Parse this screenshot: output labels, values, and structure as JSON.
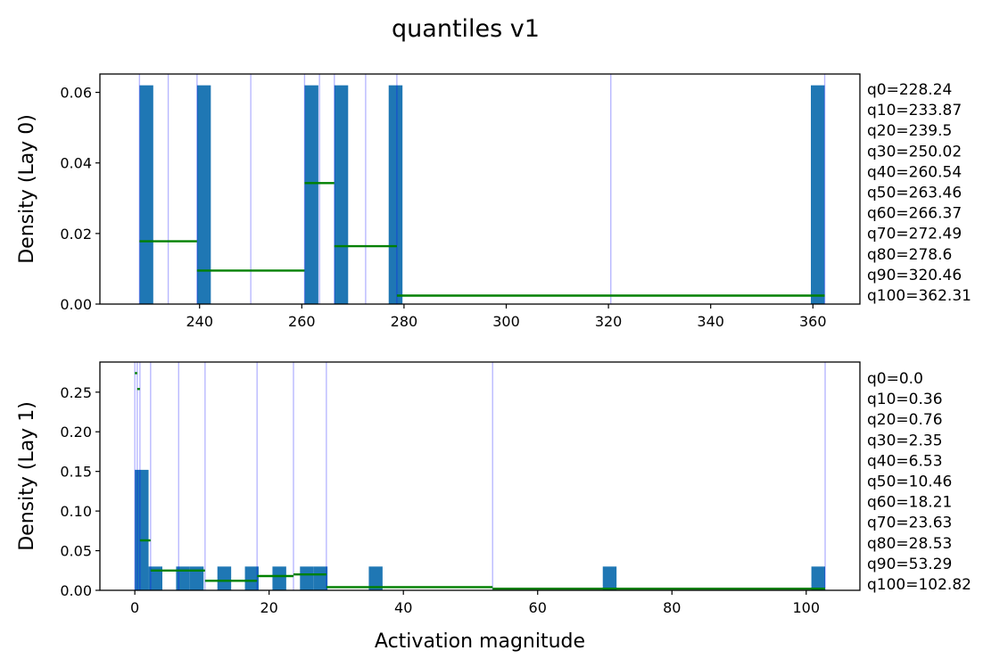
{
  "figure": {
    "title": "quantiles v1"
  },
  "chart_data": [
    {
      "type": "bar",
      "title": "",
      "xlabel": "",
      "ylabel": "Density (Lay 0)",
      "xlim": [
        220.5,
        369.2
      ],
      "ylim": [
        0,
        0.0652
      ],
      "xticks": [
        240,
        260,
        280,
        300,
        320,
        340,
        360
      ],
      "xtick_labels": [
        "240",
        "260",
        "280",
        "300",
        "320",
        "340",
        "360"
      ],
      "yticks": [
        0.0,
        0.02,
        0.04,
        0.06
      ],
      "ytick_labels": [
        "0.00",
        "0.02",
        "0.04",
        "0.06"
      ],
      "grid": false,
      "histogram": {
        "bin_width": 2.7,
        "bars": [
          {
            "x": 228.24,
            "value": 0.062
          },
          {
            "x": 239.5,
            "value": 0.062
          },
          {
            "x": 260.54,
            "value": 0.062
          },
          {
            "x": 266.37,
            "value": 0.062
          },
          {
            "x": 277.0,
            "value": 0.062
          },
          {
            "x": 359.6,
            "value": 0.062
          }
        ]
      },
      "quantile_lines": [
        228.24,
        233.87,
        239.5,
        250.02,
        260.54,
        263.46,
        266.37,
        272.49,
        278.6,
        320.46,
        362.31
      ],
      "segment_density": [
        {
          "x0": 228.24,
          "x1": 239.5,
          "y": 0.0178
        },
        {
          "x0": 239.5,
          "x1": 260.54,
          "y": 0.0095
        },
        {
          "x0": 260.54,
          "x1": 266.37,
          "y": 0.0343
        },
        {
          "x0": 266.37,
          "x1": 278.6,
          "y": 0.0164
        },
        {
          "x0": 278.6,
          "x1": 362.31,
          "y": 0.0024
        }
      ],
      "quantile_labels": [
        "q0=228.24",
        "q10=233.87",
        "q20=239.5",
        "q30=250.02",
        "q40=260.54",
        "q50=263.46",
        "q60=266.37",
        "q70=272.49",
        "q80=278.6",
        "q90=320.46",
        "q100=362.31"
      ]
    },
    {
      "type": "bar",
      "title": "",
      "xlabel": "Activation magnitude",
      "ylabel": "Density (Lay 1)",
      "xlim": [
        -5.2,
        108.0
      ],
      "ylim": [
        0,
        0.288
      ],
      "xticks": [
        0,
        20,
        40,
        60,
        80,
        100
      ],
      "xtick_labels": [
        "0",
        "20",
        "40",
        "60",
        "80",
        "100"
      ],
      "yticks": [
        0.0,
        0.05,
        0.1,
        0.15,
        0.2,
        0.25
      ],
      "ytick_labels": [
        "0.00",
        "0.05",
        "0.10",
        "0.15",
        "0.20",
        "0.25"
      ],
      "grid": false,
      "histogram": {
        "bin_width": 2.05,
        "bars": [
          {
            "x": 0.0,
            "value": 0.152
          },
          {
            "x": 2.05,
            "value": 0.03
          },
          {
            "x": 6.15,
            "value": 0.03
          },
          {
            "x": 8.2,
            "value": 0.03
          },
          {
            "x": 12.3,
            "value": 0.03
          },
          {
            "x": 16.4,
            "value": 0.03
          },
          {
            "x": 20.5,
            "value": 0.03
          },
          {
            "x": 24.6,
            "value": 0.03
          },
          {
            "x": 26.65,
            "value": 0.03
          },
          {
            "x": 34.85,
            "value": 0.03
          },
          {
            "x": 69.7,
            "value": 0.03
          },
          {
            "x": 100.77,
            "value": 0.03
          }
        ]
      },
      "quantile_lines": [
        0.0,
        0.36,
        0.76,
        2.35,
        6.53,
        10.46,
        18.21,
        23.63,
        28.53,
        53.29,
        102.82
      ],
      "segment_density": [
        {
          "x0": 0.0,
          "x1": 0.36,
          "y": 0.274
        },
        {
          "x0": 0.36,
          "x1": 0.76,
          "y": 0.254
        },
        {
          "x0": 0.76,
          "x1": 2.35,
          "y": 0.063
        },
        {
          "x0": 2.35,
          "x1": 10.46,
          "y": 0.025
        },
        {
          "x0": 10.46,
          "x1": 18.21,
          "y": 0.012
        },
        {
          "x0": 18.21,
          "x1": 23.63,
          "y": 0.018
        },
        {
          "x0": 23.63,
          "x1": 28.53,
          "y": 0.02
        },
        {
          "x0": 28.53,
          "x1": 53.29,
          "y": 0.004
        },
        {
          "x0": 53.29,
          "x1": 102.82,
          "y": 0.002
        }
      ],
      "quantile_labels": [
        "q0=0.0",
        "q10=0.36",
        "q20=0.76",
        "q30=2.35",
        "q40=6.53",
        "q50=10.46",
        "q60=18.21",
        "q70=23.63",
        "q80=28.53",
        "q90=53.29",
        "q100=102.82"
      ]
    }
  ]
}
